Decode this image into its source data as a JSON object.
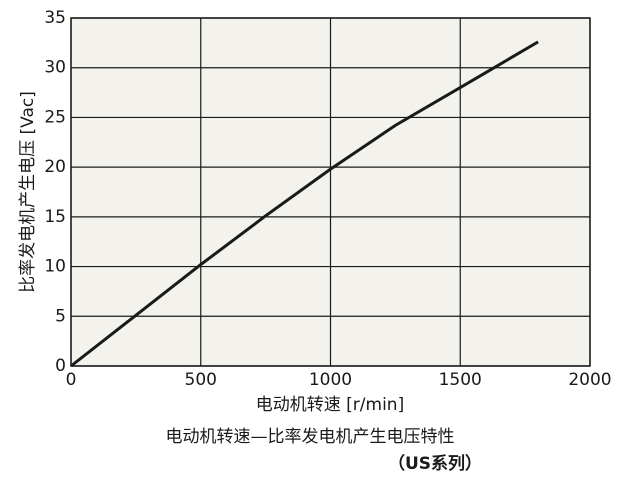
{
  "chart_data": {
    "type": "line",
    "x_label": "电动机转速 [r/min]",
    "y_label": "比率发电机产生电压 [Vac]",
    "caption": "电动机转速—比率发电机产生电压特性",
    "subtitle": "（US系列）",
    "x": [
      0,
      250,
      500,
      750,
      1000,
      1250,
      1500,
      1800
    ],
    "series": [
      {
        "color": "#1a1a1a",
        "values": [
          0,
          5.1,
          10.2,
          15.1,
          19.8,
          24.2,
          28.0,
          32.6
        ]
      }
    ],
    "xlim": [
      0,
      2000
    ],
    "xticks": [
      0,
      500,
      1000,
      1500,
      2000
    ],
    "ylim": [
      0,
      35
    ],
    "yticks": [
      0,
      5,
      10,
      15,
      20,
      25,
      30,
      35
    ],
    "grid": true
  }
}
